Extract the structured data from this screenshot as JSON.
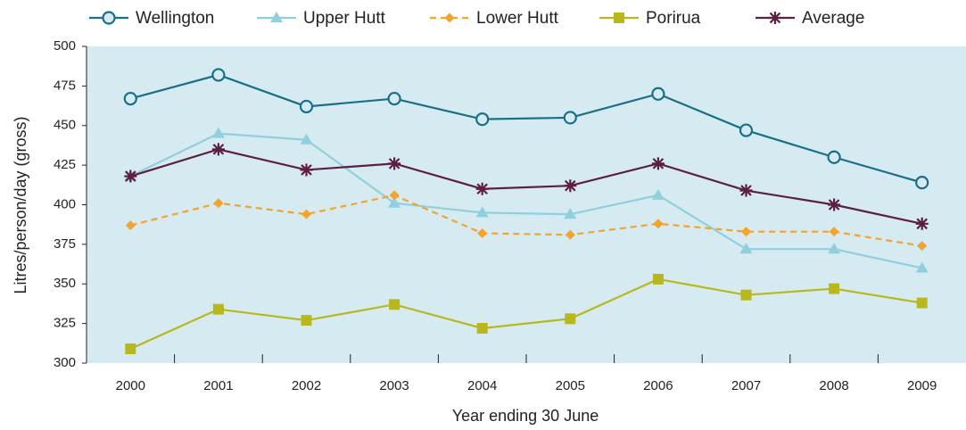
{
  "chart_data": {
    "type": "line",
    "x_label": "Year ending 30 June",
    "y_label": "Litres/person/day (gross)",
    "categories": [
      "2000",
      "2001",
      "2002",
      "2003",
      "2004",
      "2005",
      "2006",
      "2007",
      "2008",
      "2009"
    ],
    "ylim": [
      300,
      500
    ],
    "yticks": [
      300,
      325,
      350,
      375,
      400,
      425,
      450,
      475,
      500
    ],
    "background": "#d5eaf1",
    "series": [
      {
        "name": "Wellington",
        "color": "#1a6f86",
        "marker": "circle",
        "dash": false,
        "values": [
          467,
          482,
          462,
          467,
          454,
          455,
          470,
          447,
          430,
          414
        ]
      },
      {
        "name": "Upper Hutt",
        "color": "#8fd0dc",
        "marker": "triangle",
        "dash": false,
        "values": [
          418,
          445,
          441,
          401,
          395,
          394,
          406,
          372,
          372,
          360
        ]
      },
      {
        "name": "Lower Hutt",
        "color": "#f4a32c",
        "marker": "diamond",
        "dash": true,
        "values": [
          387,
          401,
          394,
          406,
          382,
          381,
          388,
          383,
          383,
          374
        ]
      },
      {
        "name": "Porirua",
        "color": "#b8b81c",
        "marker": "square",
        "dash": false,
        "values": [
          309,
          334,
          327,
          337,
          322,
          328,
          353,
          343,
          347,
          338
        ]
      },
      {
        "name": "Average",
        "color": "#5b1f44",
        "marker": "star",
        "dash": false,
        "values": [
          418,
          435,
          422,
          426,
          410,
          412,
          426,
          409,
          400,
          388
        ]
      }
    ]
  }
}
